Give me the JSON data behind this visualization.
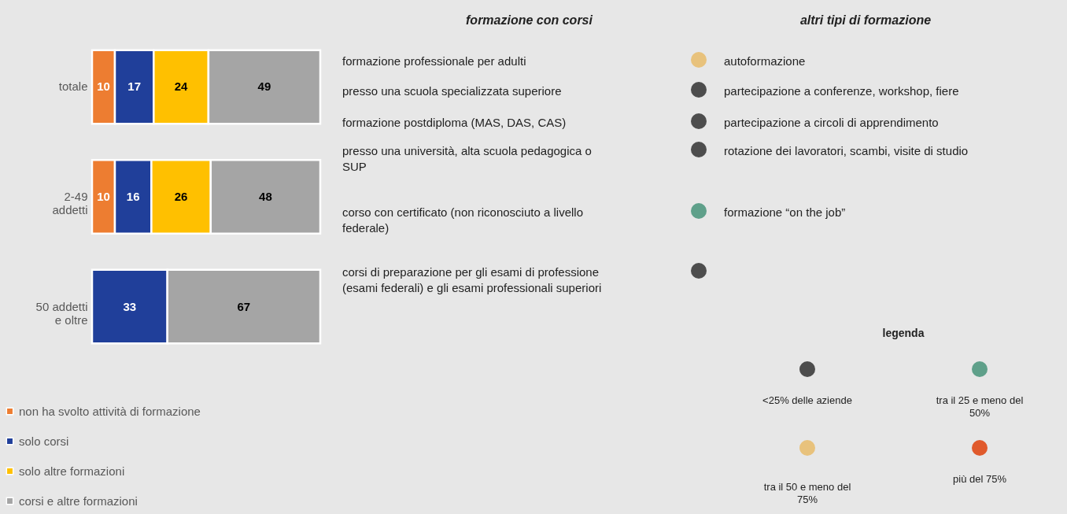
{
  "chart_data": [
    {
      "type": "bar",
      "orientation": "horizontal",
      "stacked": true,
      "categories": [
        "totale",
        "2-49\naddetti",
        "50 addetti\ne oltre"
      ],
      "series": [
        {
          "name": "non ha svolto attività di formazione",
          "color": "#ed7d31",
          "values": [
            10,
            10,
            null
          ]
        },
        {
          "name": "solo corsi",
          "color": "#203f9a",
          "values": [
            17,
            16,
            33
          ]
        },
        {
          "name": "solo altre formazioni",
          "color": "#ffc000",
          "values": [
            24,
            26,
            null
          ]
        },
        {
          "name": "corsi e altre formazioni",
          "color": "#a5a5a5",
          "values": [
            49,
            48,
            67
          ]
        }
      ],
      "xlim": [
        0,
        100
      ],
      "data_labels": true,
      "legend": "bottom",
      "tick_labels": "y"
    },
    {
      "type": "other",
      "title": "formazione con corsi",
      "annotations": [
        "formazione professionale per adulti",
        "presso una scuola specializzata superiore",
        "formazione postdiploma (MAS, DAS, CAS)",
        "presso una università, alta scuola pedagogica o SUP",
        "corso con certificato (non riconosciuto a livello federale)",
        "corsi di preparazione per gli esami di professione (esami federali) e gli esami professionali superiori"
      ]
    },
    {
      "type": "other",
      "title": "altri tipi di formazione",
      "annotations": [
        "autoformazione",
        "partecipazione a conferenze, workshop, fiere",
        "partecipazione a circoli di apprendimento",
        "rotazione dei lavoratori, scambi, visite di studio",
        "formazione “on the job”"
      ]
    },
    {
      "type": "other",
      "title": "legenda",
      "annotations": [
        "<25% delle aziende",
        "tra il 25 e meno del 50%",
        "tra il 50 e meno del 75%",
        "più del 75%"
      ]
    }
  ]
}
